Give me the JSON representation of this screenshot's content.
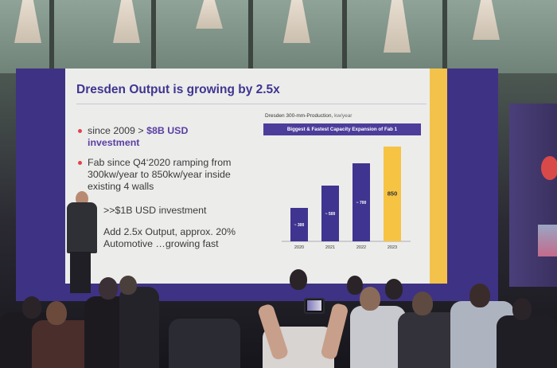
{
  "slide": {
    "title": "Dresden Output is growing by 2.5x",
    "bullets": [
      {
        "prefix": "since 2009 > ",
        "highlight": "$8B USD",
        "line2": "investment",
        "dot": true
      },
      {
        "line1": "Fab since Q4‘2020 ramping from",
        "line2": "300kw/year to 850kw/year inside",
        "line3": "existing 4 walls",
        "dot": true
      },
      {
        "line1": ">>$1B USD investment",
        "dot": true
      },
      {
        "line1": "Add 2.5x Output, approx. 20%",
        "line2": "Automotive …growing fast",
        "dot": false
      }
    ]
  },
  "chart": {
    "caption": "Dresden 300-mm-Production,",
    "caption_unit": "kw/year",
    "banner": "Biggest & Fastest Capacity Expansion of Fab 1"
  },
  "chart_data": {
    "type": "bar",
    "categories": [
      "2020",
      "2021",
      "2022",
      "2023"
    ],
    "values": [
      300,
      500,
      700,
      850
    ],
    "data_labels": [
      "~ 300",
      "~ 500",
      "~ 700",
      "850"
    ],
    "title": "Dresden 300-mm-Production,",
    "ylabel": "kw/year",
    "ylim": [
      0,
      900
    ],
    "colors": [
      "#3f3590",
      "#3f3590",
      "#3f3590",
      "#f6c343"
    ],
    "label_colors": [
      "#ffffff",
      "#ffffff",
      "#ffffff",
      "#333333"
    ]
  },
  "colors": {
    "stage": "#3e3285",
    "accent": "#f2c24a",
    "title": "#3f3590",
    "bullet_dot": "#e0444e"
  }
}
